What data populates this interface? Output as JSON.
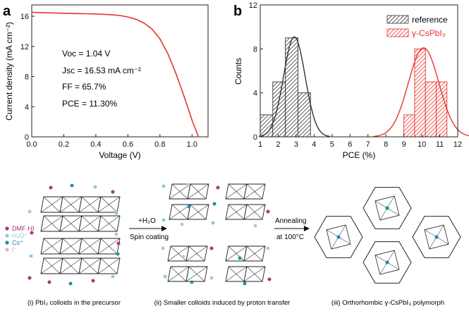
{
  "panels": {
    "a": {
      "label": "a"
    },
    "b": {
      "label": "b"
    }
  },
  "chart_data": [
    {
      "type": "line",
      "panel": "a",
      "xlabel": "Voltage (V)",
      "ylabel": "Current density (mA cm⁻²)",
      "xlim": [
        0,
        1.1
      ],
      "ylim": [
        0,
        17.5
      ],
      "x_ticks": [
        0.0,
        0.2,
        0.4,
        0.6,
        0.8,
        1.0
      ],
      "x_tick_labels": [
        "0.0",
        "0.2",
        "0.4",
        "0.6",
        "0.8",
        "1.0"
      ],
      "y_ticks": [
        0,
        4,
        8,
        12,
        16
      ],
      "y_tick_labels": [
        "0",
        "4",
        "8",
        "12",
        "16"
      ],
      "series": [
        {
          "name": "J-V curve",
          "color": "#e8332e",
          "x": [
            0.0,
            0.1,
            0.2,
            0.3,
            0.4,
            0.5,
            0.55,
            0.6,
            0.65,
            0.7,
            0.75,
            0.8,
            0.85,
            0.9,
            0.95,
            1.0,
            1.04
          ],
          "y": [
            16.53,
            16.45,
            16.4,
            16.35,
            16.3,
            16.2,
            16.1,
            15.9,
            15.6,
            15.1,
            14.3,
            13.0,
            11.0,
            8.4,
            5.4,
            2.2,
            0.0
          ]
        }
      ],
      "annotations": [
        "Voc = 1.04 V",
        "Jsc = 16.53 mA cm⁻²",
        "FF = 65.7%",
        "PCE = 11.30%"
      ]
    },
    {
      "type": "bar",
      "panel": "b",
      "xlabel": "PCE (%)",
      "ylabel": "Counts",
      "xlim": [
        1,
        12
      ],
      "ylim": [
        0,
        12
      ],
      "x_ticks": [
        1,
        2,
        3,
        4,
        5,
        6,
        7,
        8,
        9,
        10,
        11,
        12
      ],
      "x_tick_labels": [
        "1",
        "2",
        "3",
        "4",
        "5",
        "6",
        "7",
        "8",
        "9",
        "10",
        "11",
        "12"
      ],
      "y_ticks": [
        0,
        4,
        8,
        12
      ],
      "y_tick_labels": [
        "0",
        "4",
        "8",
        "12"
      ],
      "legend_position": "top-right",
      "series": [
        {
          "name": "reference",
          "color": "#333333",
          "bin_edges": [
            1.0,
            1.7,
            2.4,
            3.1,
            3.8,
            4.5
          ],
          "values": [
            2,
            5,
            9,
            4,
            0
          ],
          "fit": {
            "type": "gaussian",
            "mean": 2.9,
            "sigma": 0.6,
            "peak": 9.1
          }
        },
        {
          "name": "γ-CsPbI₃",
          "color": "#e8332e",
          "bin_edges": [
            9.0,
            9.6,
            10.2,
            10.8,
            11.4
          ],
          "values": [
            2,
            8,
            5,
            5
          ],
          "fit": {
            "type": "gaussian",
            "mean": 10.1,
            "sigma": 0.85,
            "peak": 8.1
          }
        }
      ]
    }
  ],
  "schematic": {
    "stages": [
      {
        "caption": "(i) PbI₂ colloids in the precursor"
      },
      {
        "caption": "(ii) Smaller colloids induced by proton transfer"
      },
      {
        "caption": "(iii) Orthorhombic γ-CsPbI₃ polymorph"
      }
    ],
    "legend": [
      {
        "label": "DMF·HI",
        "color": "#a23a71"
      },
      {
        "label": "H₃O⁺",
        "color": "#8ec9e8"
      },
      {
        "label": "Cs⁺",
        "color": "#1d8ea8"
      },
      {
        "label": "I⁻",
        "color": "#e4b2c6"
      }
    ],
    "arrows": [
      {
        "top_label": "+H₂O",
        "bottom_label": "Spin coating"
      },
      {
        "top_label": "Annealing",
        "bottom_label": "at 100°C"
      }
    ]
  }
}
